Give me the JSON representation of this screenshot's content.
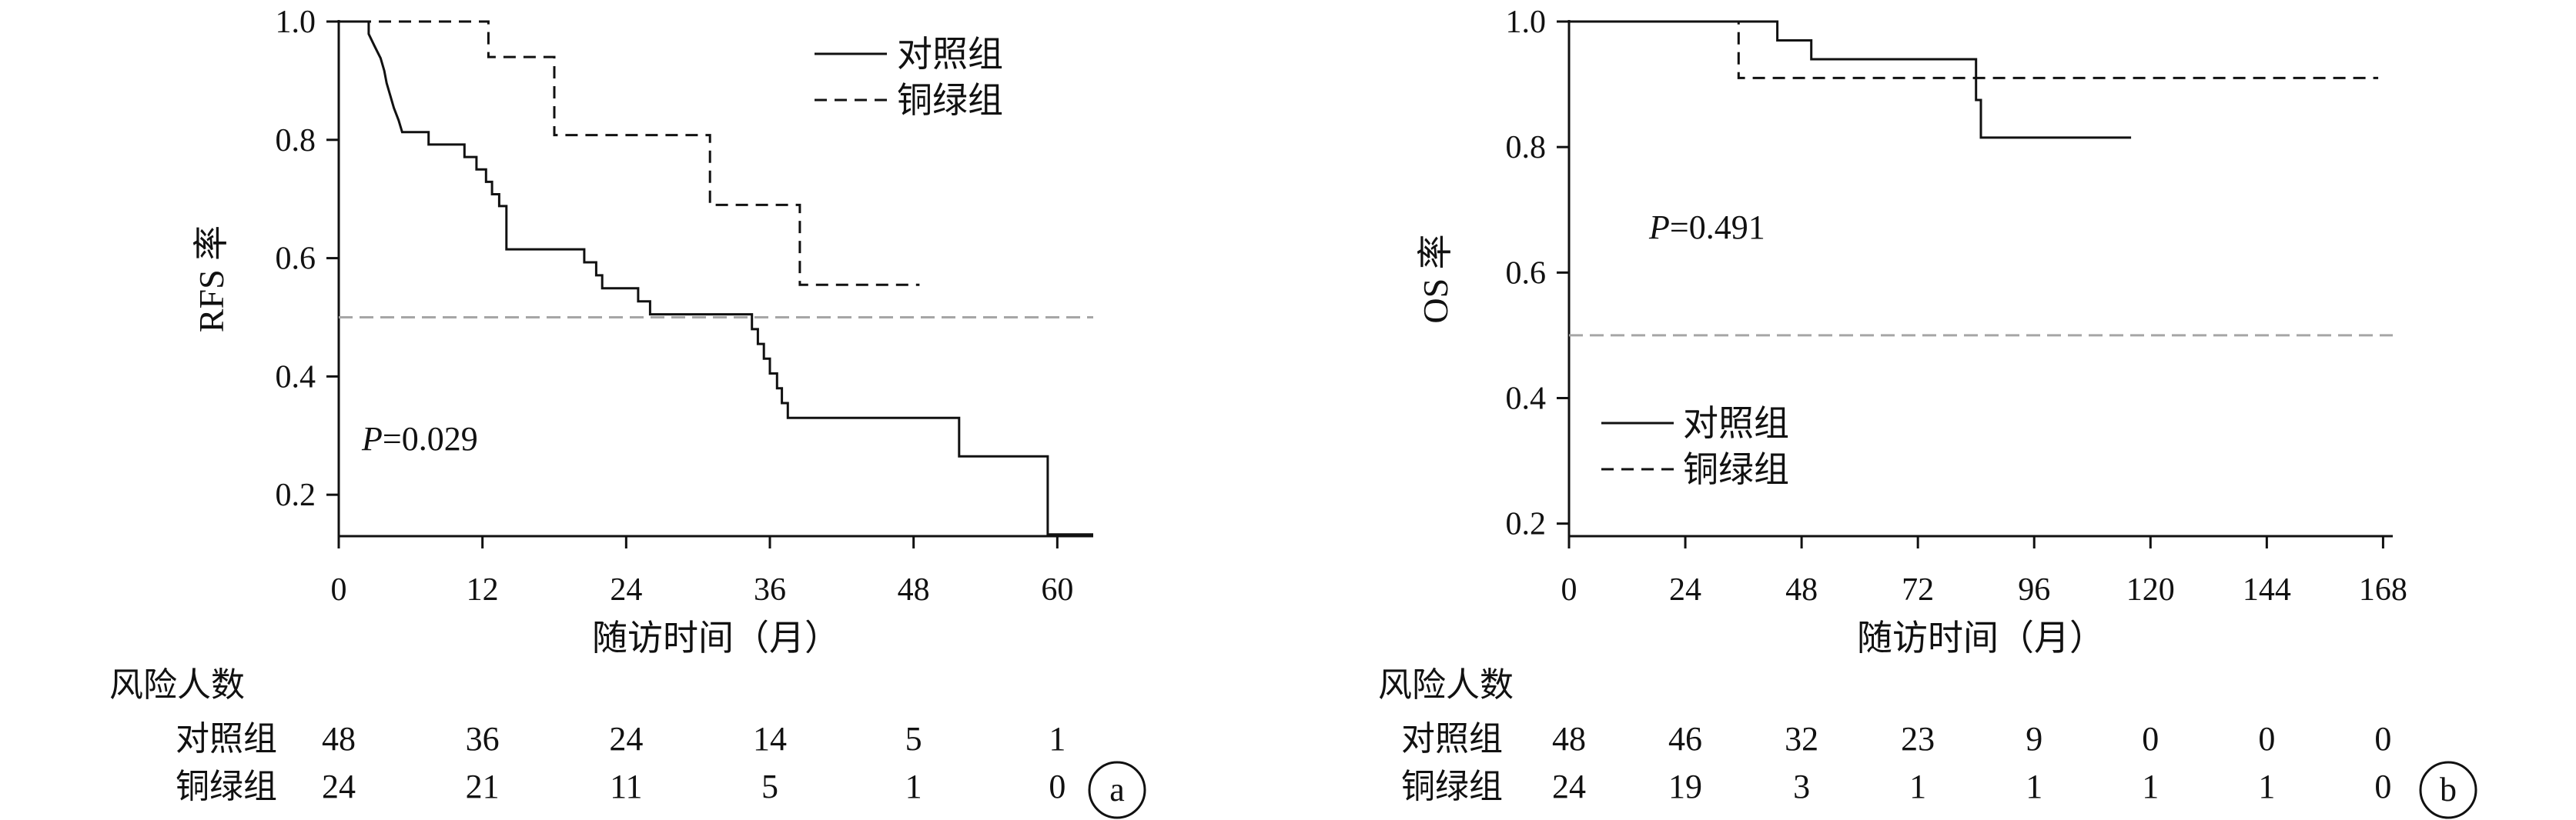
{
  "chart_data": [
    {
      "type": "line",
      "panel_label": "a",
      "xlabel": "随访时间（月）",
      "ylabel": "RFS 率",
      "xticks": [
        0,
        12,
        24,
        36,
        48,
        60
      ],
      "yticks": [
        "0.2",
        "0.4",
        "0.6",
        "0.8",
        "1.0"
      ],
      "xlim": [
        0,
        63
      ],
      "ylim": [
        0.13,
        1.0
      ],
      "reference_line": 0.5,
      "p_value": "P=0.029",
      "legend": "top-right",
      "series": [
        {
          "name": "对照组",
          "style": "solid",
          "steps": [
            [
              0,
              1.0
            ],
            [
              2.5,
              1.0
            ],
            [
              2.5,
              0.979
            ],
            [
              3.0,
              0.958
            ],
            [
              3.5,
              0.938
            ],
            [
              3.8,
              0.917
            ],
            [
              4.0,
              0.896
            ],
            [
              4.3,
              0.875
            ],
            [
              4.6,
              0.854
            ],
            [
              5.0,
              0.833
            ],
            [
              5.3,
              0.813
            ],
            [
              7.5,
              0.813
            ],
            [
              7.5,
              0.792
            ],
            [
              10.5,
              0.792
            ],
            [
              10.5,
              0.771
            ],
            [
              11.5,
              0.771
            ],
            [
              11.5,
              0.75
            ],
            [
              12.3,
              0.75
            ],
            [
              12.3,
              0.729
            ],
            [
              12.8,
              0.729
            ],
            [
              12.8,
              0.708
            ],
            [
              13.4,
              0.708
            ],
            [
              13.4,
              0.688
            ],
            [
              14.0,
              0.688
            ],
            [
              14.0,
              0.615
            ],
            [
              20.5,
              0.615
            ],
            [
              20.5,
              0.593
            ],
            [
              21.5,
              0.593
            ],
            [
              21.5,
              0.571
            ],
            [
              22.0,
              0.571
            ],
            [
              22.0,
              0.549
            ],
            [
              25.0,
              0.549
            ],
            [
              25.0,
              0.527
            ],
            [
              26.0,
              0.527
            ],
            [
              26.0,
              0.505
            ],
            [
              34.5,
              0.505
            ],
            [
              34.5,
              0.48
            ],
            [
              35.0,
              0.48
            ],
            [
              35.0,
              0.455
            ],
            [
              35.5,
              0.455
            ],
            [
              35.5,
              0.43
            ],
            [
              36.0,
              0.43
            ],
            [
              36.0,
              0.405
            ],
            [
              36.6,
              0.405
            ],
            [
              36.6,
              0.38
            ],
            [
              37.0,
              0.38
            ],
            [
              37.0,
              0.355
            ],
            [
              37.5,
              0.355
            ],
            [
              37.5,
              0.33
            ],
            [
              51.8,
              0.33
            ],
            [
              51.8,
              0.265
            ],
            [
              59.2,
              0.265
            ],
            [
              59.2,
              0.133
            ],
            [
              63.0,
              0.133
            ]
          ]
        },
        {
          "name": "铜绿组",
          "style": "dashed",
          "steps": [
            [
              0,
              1.0
            ],
            [
              12.5,
              1.0
            ],
            [
              12.5,
              0.94
            ],
            [
              18.0,
              0.94
            ],
            [
              18.0,
              0.808
            ],
            [
              31.0,
              0.808
            ],
            [
              31.0,
              0.69
            ],
            [
              38.5,
              0.69
            ],
            [
              38.5,
              0.555
            ],
            [
              48.5,
              0.555
            ]
          ]
        }
      ],
      "risk_table": {
        "title": "风险人数",
        "rows": [
          {
            "group": "对照组",
            "values": [
              "48",
              "36",
              "24",
              "14",
              "5",
              "1"
            ]
          },
          {
            "group": "铜绿组",
            "values": [
              "24",
              "21",
              "11",
              "5",
              "1",
              "0"
            ]
          }
        ]
      }
    },
    {
      "type": "line",
      "panel_label": "b",
      "xlabel": "随访时间（月）",
      "ylabel": "OS 率",
      "xticks": [
        0,
        24,
        48,
        72,
        96,
        120,
        144,
        168
      ],
      "yticks": [
        "0.2",
        "0.4",
        "0.6",
        "0.8",
        "1.0"
      ],
      "xlim": [
        0,
        170
      ],
      "ylim": [
        0.18,
        1.0
      ],
      "reference_line": 0.5,
      "p_value": "P=0.491",
      "legend": "bottom-left",
      "series": [
        {
          "name": "对照组",
          "style": "solid",
          "steps": [
            [
              0,
              1.0
            ],
            [
              43,
              1.0
            ],
            [
              43,
              0.97
            ],
            [
              50,
              0.97
            ],
            [
              50,
              0.94
            ],
            [
              84,
              0.94
            ],
            [
              84,
              0.875
            ],
            [
              85,
              0.875
            ],
            [
              85,
              0.815
            ],
            [
              116,
              0.815
            ]
          ]
        },
        {
          "name": "铜绿组",
          "style": "dashed",
          "steps": [
            [
              0,
              1.0
            ],
            [
              35,
              1.0
            ],
            [
              35,
              0.91
            ],
            [
              167,
              0.91
            ]
          ]
        }
      ],
      "risk_table": {
        "title": "风险人数",
        "rows": [
          {
            "group": "对照组",
            "values": [
              "48",
              "46",
              "32",
              "23",
              "9",
              "0",
              "0",
              "0"
            ]
          },
          {
            "group": "铜绿组",
            "values": [
              "24",
              "19",
              "3",
              "1",
              "1",
              "1",
              "1",
              "0"
            ]
          }
        ]
      }
    }
  ]
}
